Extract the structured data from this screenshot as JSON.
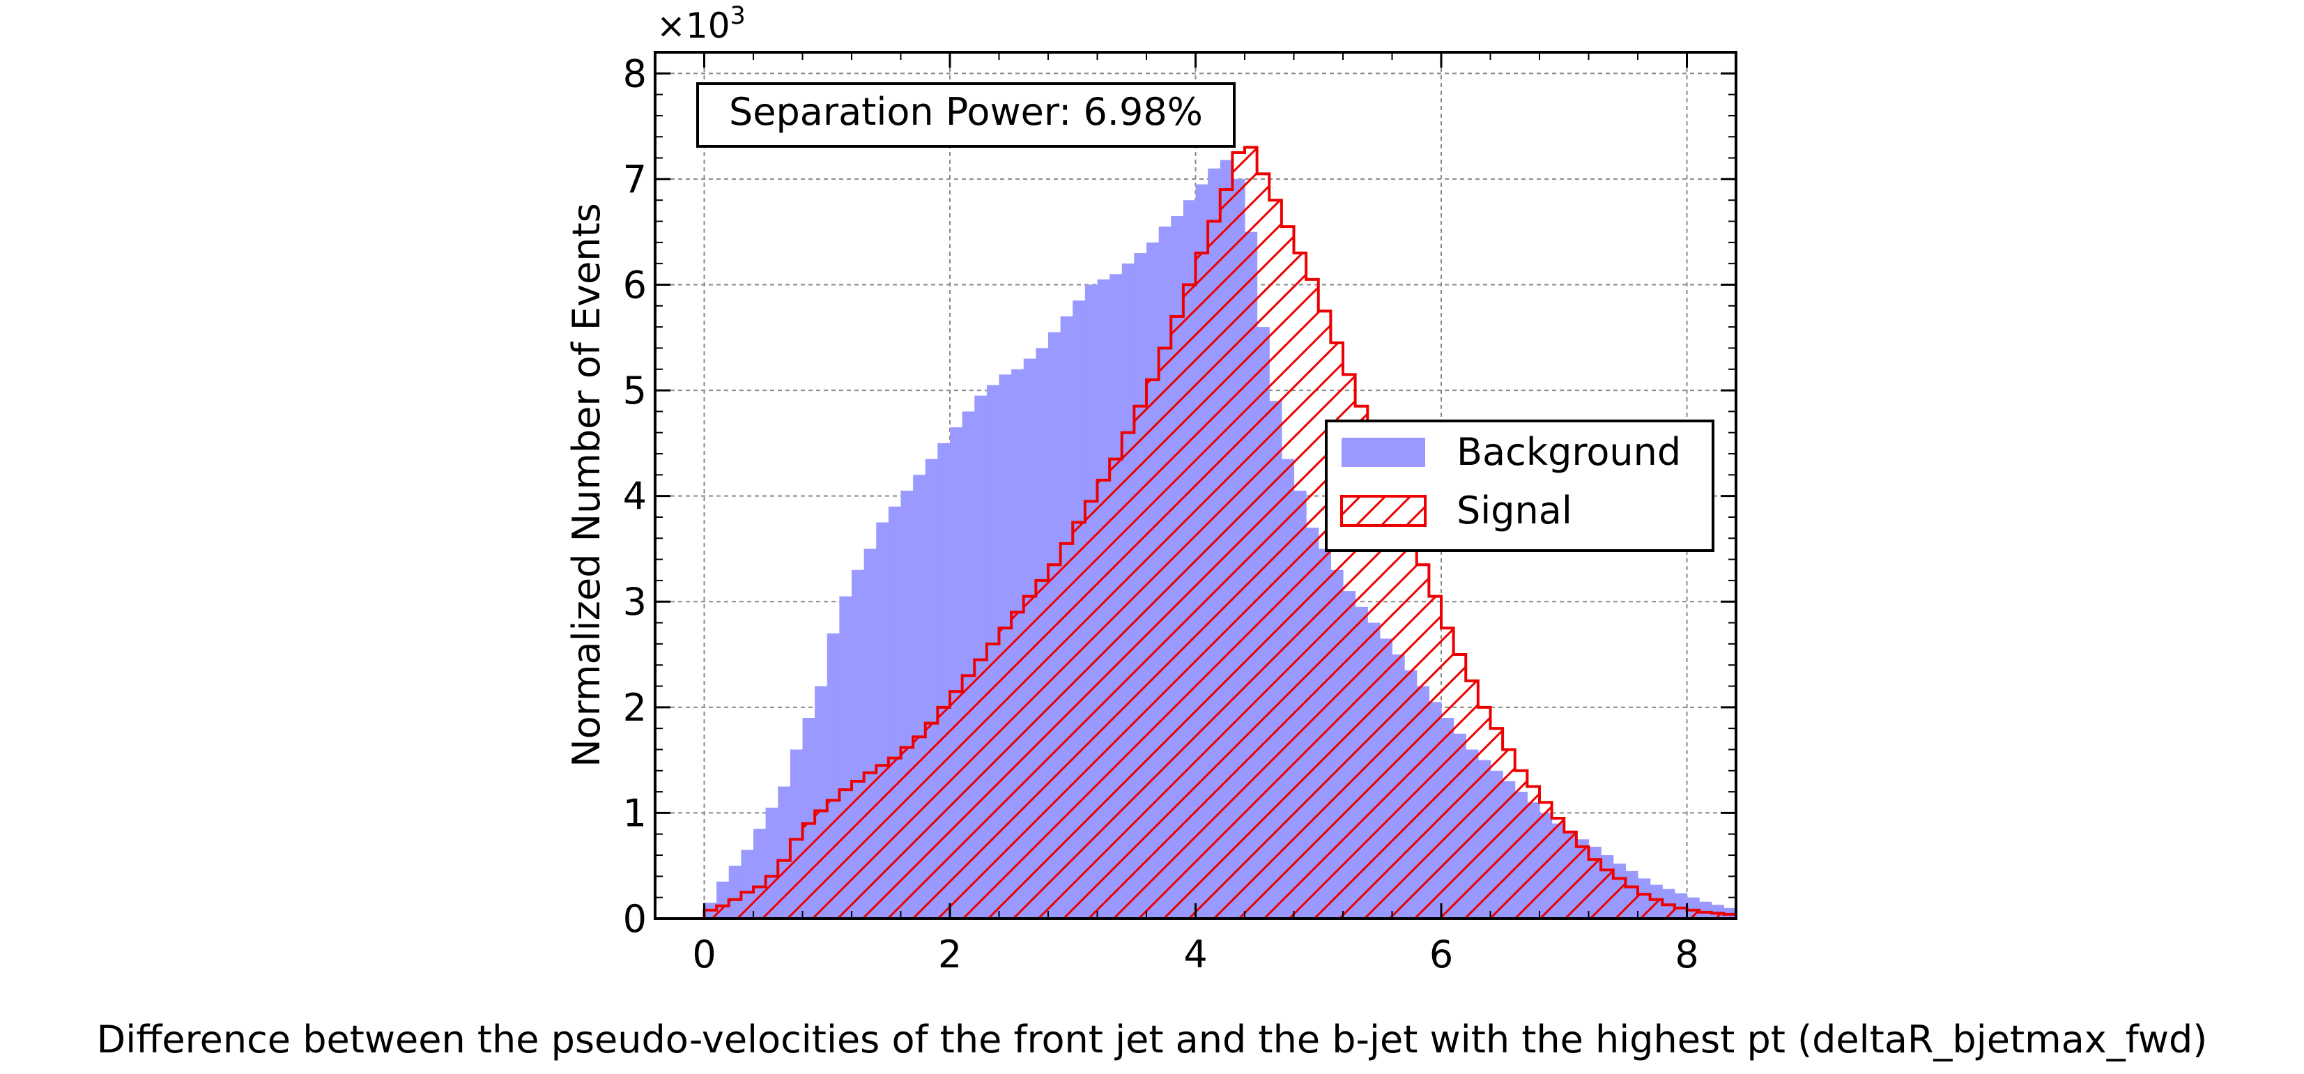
{
  "chart_data": {
    "type": "histogram",
    "x_axis": {
      "label": "Difference between the pseudo-velocities of the front jet and the b-jet with the highest pt (deltaR_bjetmax_fwd)",
      "range": [
        -0.4,
        8.4
      ],
      "ticks": [
        "0",
        "2",
        "4",
        "6",
        "8"
      ],
      "tick_values": [
        0,
        2,
        4,
        6,
        8
      ]
    },
    "y_axis": {
      "label": "Normalized Number of Events",
      "range": [
        0,
        8.2
      ],
      "ticks": [
        "0",
        "1",
        "2",
        "3",
        "4",
        "5",
        "6",
        "7",
        "8"
      ],
      "tick_values": [
        0,
        1,
        2,
        3,
        4,
        5,
        6,
        7,
        8
      ],
      "scale_prefix": "×10",
      "scale_exponent": "3"
    },
    "grid": true,
    "legend": {
      "placement": "right",
      "entries": [
        "Background",
        "Signal"
      ]
    },
    "annotation": "Separation Power: 6.98%",
    "bin_start": 0,
    "bin_width": 0.1,
    "series": [
      {
        "name": "Background",
        "style": "filled",
        "color": "#9999ff",
        "values": [
          0.15,
          0.35,
          0.5,
          0.65,
          0.85,
          1.05,
          1.25,
          1.6,
          1.9,
          2.2,
          2.7,
          3.05,
          3.3,
          3.5,
          3.75,
          3.9,
          4.05,
          4.2,
          4.35,
          4.5,
          4.65,
          4.8,
          4.95,
          5.05,
          5.15,
          5.2,
          5.3,
          5.4,
          5.55,
          5.7,
          5.85,
          6.0,
          6.05,
          6.1,
          6.2,
          6.3,
          6.4,
          6.55,
          6.65,
          6.8,
          6.95,
          7.1,
          7.18,
          7.0,
          6.5,
          5.6,
          4.9,
          4.35,
          4.05,
          3.7,
          3.5,
          3.3,
          3.1,
          2.95,
          2.8,
          2.65,
          2.5,
          2.35,
          2.2,
          2.05,
          1.9,
          1.75,
          1.6,
          1.5,
          1.4,
          1.3,
          1.2,
          1.1,
          1.0,
          0.9,
          0.82,
          0.75,
          0.68,
          0.6,
          0.52,
          0.45,
          0.38,
          0.32,
          0.28,
          0.24,
          0.2,
          0.16,
          0.13,
          0.1,
          0.08,
          0.06,
          0.05,
          0.04,
          0.03,
          0.02,
          0.015,
          0.01,
          0.008,
          0.005,
          0.003,
          0.002
        ]
      },
      {
        "name": "Signal",
        "style": "hatched",
        "color": "#ee0000",
        "values": [
          0.08,
          0.12,
          0.18,
          0.25,
          0.3,
          0.4,
          0.55,
          0.75,
          0.9,
          1.02,
          1.12,
          1.22,
          1.3,
          1.38,
          1.45,
          1.52,
          1.62,
          1.72,
          1.85,
          2.0,
          2.15,
          2.3,
          2.45,
          2.6,
          2.75,
          2.9,
          3.05,
          3.2,
          3.35,
          3.55,
          3.75,
          3.95,
          4.15,
          4.35,
          4.6,
          4.85,
          5.1,
          5.4,
          5.7,
          6.0,
          6.3,
          6.6,
          6.9,
          7.25,
          7.3,
          7.05,
          6.8,
          6.55,
          6.3,
          6.05,
          5.75,
          5.45,
          5.15,
          4.85,
          4.55,
          4.25,
          3.95,
          3.65,
          3.35,
          3.05,
          2.75,
          2.5,
          2.25,
          2.0,
          1.8,
          1.6,
          1.4,
          1.25,
          1.1,
          0.95,
          0.82,
          0.68,
          0.56,
          0.46,
          0.38,
          0.3,
          0.23,
          0.18,
          0.13,
          0.1,
          0.08,
          0.06,
          0.05,
          0.04,
          0.03,
          0.02,
          0.015,
          0.01,
          0.005,
          0.003,
          0.002
        ]
      }
    ]
  }
}
